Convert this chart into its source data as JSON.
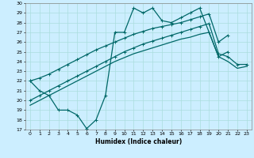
{
  "xlabel": "Humidex (Indice chaleur)",
  "x_vals": [
    0,
    1,
    2,
    3,
    4,
    5,
    6,
    7,
    8,
    9,
    10,
    11,
    12,
    13,
    14,
    15,
    16,
    17,
    18,
    19,
    20,
    21,
    22,
    23
  ],
  "line1_y": [
    22,
    21,
    20.5,
    19,
    19,
    18.5,
    17.1,
    18,
    20.5,
    27,
    27,
    29.5,
    29,
    29.5,
    28.2,
    28,
    28.5,
    29,
    29.5,
    27,
    24.5,
    25,
    null,
    null
  ],
  "line2_y": [
    22,
    22.3,
    22.7,
    23.2,
    23.7,
    24.2,
    24.7,
    25.2,
    25.6,
    26.0,
    26.4,
    26.8,
    27.1,
    27.4,
    27.6,
    27.8,
    28.0,
    28.3,
    28.6,
    28.9,
    26.0,
    26.7,
    null,
    null
  ],
  "line3_y": [
    20,
    20.5,
    21.0,
    21.5,
    22.0,
    22.5,
    23.0,
    23.5,
    24.0,
    24.5,
    25.0,
    25.4,
    25.8,
    26.1,
    26.4,
    26.7,
    27.0,
    27.3,
    27.6,
    27.9,
    24.8,
    24.5,
    23.7,
    23.7
  ],
  "line4_y": [
    19.5,
    20.0,
    20.5,
    21.0,
    21.5,
    22.0,
    22.5,
    23.0,
    23.5,
    24.0,
    24.4,
    24.8,
    25.1,
    25.4,
    25.7,
    26.0,
    26.3,
    26.5,
    26.8,
    27.0,
    24.5,
    24.0,
    23.3,
    23.5
  ],
  "ylim": [
    17,
    30
  ],
  "xlim": [
    -0.5,
    23.5
  ],
  "yticks": [
    17,
    18,
    19,
    20,
    21,
    22,
    23,
    24,
    25,
    26,
    27,
    28,
    29,
    30
  ],
  "xticks": [
    0,
    1,
    2,
    3,
    4,
    5,
    6,
    7,
    8,
    9,
    10,
    11,
    12,
    13,
    14,
    15,
    16,
    17,
    18,
    19,
    20,
    21,
    22,
    23
  ],
  "line_color": "#006868",
  "bg_color": "#cceeff",
  "grid_color": "#aadddd"
}
